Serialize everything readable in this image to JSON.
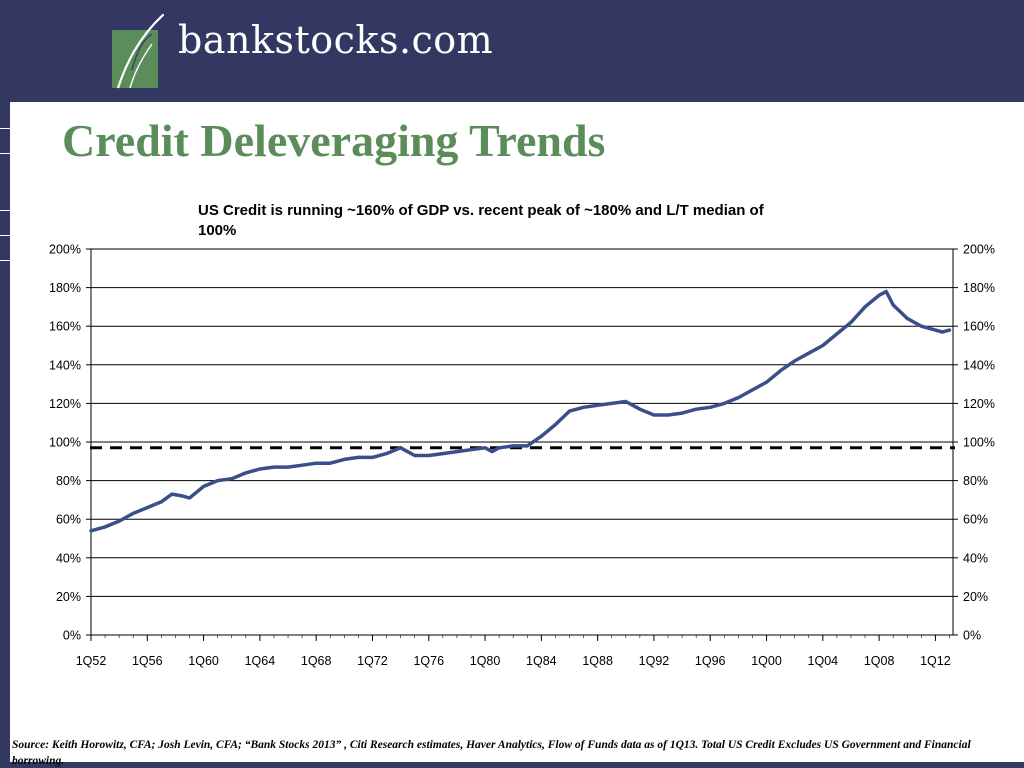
{
  "header": {
    "brand": "bankstocks.com",
    "logo_icon": "leaf-logo-icon",
    "colors": {
      "background": "#333863",
      "logo_green": "#5b8c5a"
    }
  },
  "slide": {
    "title": "Credit Deleveraging Trends",
    "caption": "US Credit is running ~160% of GDP vs. recent peak of ~180% and L/T median of 100%",
    "source": "Source: Keith Horowitz, CFA; Josh Levin, CFA; “Bank Stocks 2013” , Citi  Research estimates, Haver Analytics, Flow of Funds data as of 1Q13. Total US Credit Excludes US Government and Financial borrowing.",
    "title_color": "#5b8c5a"
  },
  "chart_data": {
    "type": "line",
    "title": "US Credit is running ~160% of GDP vs. recent peak of ~180% and L/T median of 100%",
    "xlabel": "",
    "ylabel": "",
    "x_tick_labels": [
      "1Q52",
      "1Q56",
      "1Q60",
      "1Q64",
      "1Q68",
      "1Q72",
      "1Q76",
      "1Q80",
      "1Q84",
      "1Q88",
      "1Q92",
      "1Q96",
      "1Q00",
      "1Q04",
      "1Q08",
      "1Q12"
    ],
    "y_tick_labels": [
      "0%",
      "20%",
      "40%",
      "60%",
      "80%",
      "100%",
      "120%",
      "140%",
      "160%",
      "180%",
      "200%"
    ],
    "ylim": [
      0,
      200
    ],
    "xlim": [
      1952.0,
      2013.25
    ],
    "grid": "horizontal",
    "secondary_y_axis": true,
    "series": [
      {
        "name": "",
        "color": "#3a4f8a",
        "x": [
          1952.0,
          1953.0,
          1954.0,
          1955.0,
          1956.0,
          1957.0,
          1957.75,
          1958.5,
          1959.0,
          1959.5,
          1960.0,
          1961.0,
          1962.0,
          1963.0,
          1964.0,
          1965.0,
          1966.0,
          1967.0,
          1968.0,
          1969.0,
          1970.0,
          1971.0,
          1972.0,
          1973.0,
          1974.0,
          1975.0,
          1976.0,
          1977.0,
          1978.0,
          1979.0,
          1980.0,
          1980.5,
          1981.0,
          1982.0,
          1983.0,
          1984.0,
          1985.0,
          1986.0,
          1987.0,
          1988.0,
          1989.0,
          1990.0,
          1991.0,
          1992.0,
          1993.0,
          1994.0,
          1995.0,
          1996.0,
          1997.0,
          1998.0,
          1999.0,
          2000.0,
          2001.0,
          2002.0,
          2003.0,
          2004.0,
          2005.0,
          2006.0,
          2007.0,
          2008.0,
          2008.5,
          2009.0,
          2010.0,
          2011.0,
          2012.0,
          2012.5,
          2013.0
        ],
        "values": [
          54,
          56,
          59,
          63,
          66,
          69,
          73,
          72,
          71,
          74,
          77,
          80,
          81,
          84,
          86,
          87,
          87,
          88,
          89,
          89,
          91,
          92,
          92,
          94,
          97,
          93,
          93,
          94,
          95,
          96,
          97,
          95,
          97,
          98,
          98,
          103,
          109,
          116,
          118,
          119,
          120,
          121,
          117,
          114,
          114,
          115,
          117,
          118,
          120,
          123,
          127,
          131,
          137,
          142,
          146,
          150,
          156,
          162,
          170,
          176,
          178,
          171,
          164,
          160,
          158,
          157,
          158
        ]
      }
    ],
    "reference_lines": [
      {
        "y": 97,
        "style": "dashed",
        "color": "#000000"
      }
    ]
  }
}
